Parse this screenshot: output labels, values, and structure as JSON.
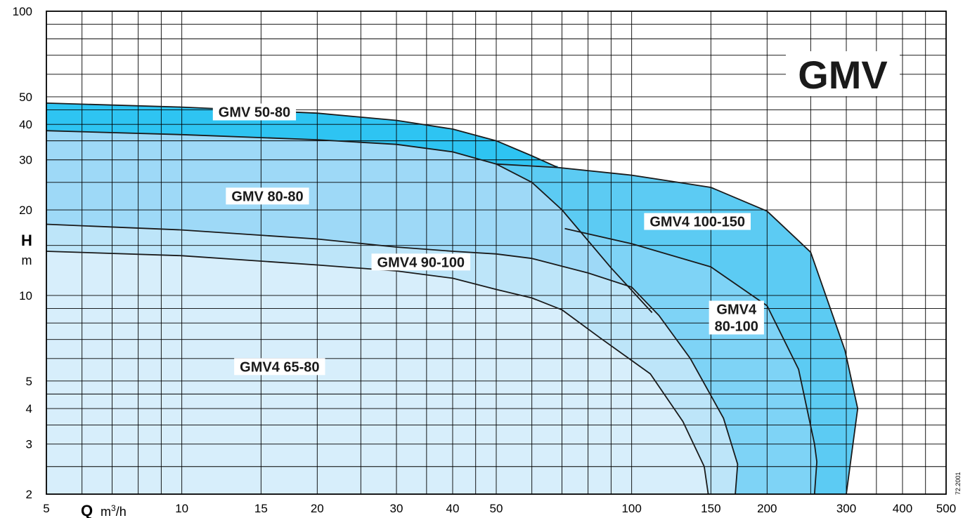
{
  "chart_data": {
    "type": "area",
    "title": "GMV",
    "x_axis": {
      "label_bold": "Q",
      "label_unit": "m3/h",
      "scale": "log",
      "range": [
        5,
        500
      ],
      "ticks": [
        5,
        10,
        15,
        20,
        30,
        40,
        50,
        100,
        150,
        200,
        300,
        400,
        500
      ],
      "tick_labels": [
        "5",
        "10",
        "15",
        "20",
        "30",
        "40",
        "50",
        "100",
        "150",
        "200",
        "300",
        "400",
        "500"
      ]
    },
    "y_axis": {
      "label_bold": "H",
      "label_unit": "m",
      "scale": "log",
      "range": [
        2,
        100
      ],
      "ticks": [
        2,
        3,
        4,
        5,
        10,
        20,
        30,
        40,
        50,
        100
      ],
      "tick_labels": [
        "2",
        "3",
        "4",
        "5",
        "10",
        "20",
        "30",
        "40",
        "50",
        "100"
      ]
    },
    "grid": true,
    "series": [
      {
        "name": "GMV4 100-150",
        "color": "#5ccbf3",
        "points": [
          [
            68.5,
            28.2
          ],
          [
            100,
            26.5
          ],
          [
            150,
            24
          ],
          [
            200,
            19.8
          ],
          [
            250,
            14.2
          ],
          [
            298,
            6.4
          ],
          [
            318,
            4.0
          ],
          [
            300,
            2.0
          ]
        ]
      },
      {
        "name": "GMV 50-80",
        "color": "#2ec4f2",
        "points": [
          [
            5,
            47.5
          ],
          [
            10,
            46
          ],
          [
            20,
            43.8
          ],
          [
            30,
            41.3
          ],
          [
            40,
            38.5
          ],
          [
            50,
            35
          ],
          [
            60,
            31
          ],
          [
            68.5,
            28.2
          ]
        ]
      },
      {
        "name": "GMV4 80-100",
        "color": "#7ed3f6",
        "points": [
          [
            71,
            17.2
          ],
          [
            100,
            15.2
          ],
          [
            150,
            12.6
          ],
          [
            200,
            9.2
          ],
          [
            235,
            5.5
          ],
          [
            255,
            3.0
          ],
          [
            258,
            2.6
          ],
          [
            255,
            2.0
          ]
        ]
      },
      {
        "name": "GMV 80-80",
        "color": "#9ed9f7",
        "points": [
          [
            5,
            38
          ],
          [
            10,
            36.8
          ],
          [
            20,
            35.3
          ],
          [
            30,
            34
          ],
          [
            40,
            32
          ],
          [
            50,
            29
          ],
          [
            60,
            25
          ],
          [
            70,
            20
          ],
          [
            90,
            12.5
          ],
          [
            111,
            8.7
          ]
        ]
      },
      {
        "name": "GMV4 90-100",
        "color": "#bde5f9",
        "points": [
          [
            5,
            17.8
          ],
          [
            10,
            17
          ],
          [
            20,
            15.8
          ],
          [
            30,
            14.8
          ],
          [
            40,
            14.3
          ],
          [
            50,
            14
          ],
          [
            60,
            13.5
          ],
          [
            80,
            12
          ],
          [
            100,
            10.7
          ],
          [
            115,
            8.5
          ],
          [
            135,
            6
          ],
          [
            160,
            3.7
          ],
          [
            172,
            2.55
          ],
          [
            170,
            2.0
          ]
        ]
      },
      {
        "name": "GMV4 65-80",
        "color": "#d7eefb",
        "points": [
          [
            5,
            14.3
          ],
          [
            10,
            13.8
          ],
          [
            20,
            12.8
          ],
          [
            30,
            12.2
          ],
          [
            40,
            11.5
          ],
          [
            50,
            10.5
          ],
          [
            60,
            9.8
          ],
          [
            70,
            8.9
          ],
          [
            85,
            7.1
          ],
          [
            110,
            5.3
          ],
          [
            130,
            3.6
          ],
          [
            145,
            2.5
          ],
          [
            148,
            2.0
          ]
        ]
      }
    ],
    "annotations": [
      {
        "text": "GMV 50-80",
        "at": [
          14.5,
          42.5
        ]
      },
      {
        "text": "GMV 80-80",
        "at": [
          15.5,
          21.5
        ]
      },
      {
        "text": "GMV4 100-150",
        "at": [
          140,
          17.5
        ]
      },
      {
        "text": "GMV4 90-100",
        "at": [
          34,
          12.6
        ]
      },
      {
        "text": "GMV4",
        "line2": "80-100",
        "at": [
          171,
          8.6
        ]
      },
      {
        "text": "GMV4 65-80",
        "at": [
          16.5,
          5.4
        ]
      }
    ],
    "side_code": "72.2001"
  }
}
